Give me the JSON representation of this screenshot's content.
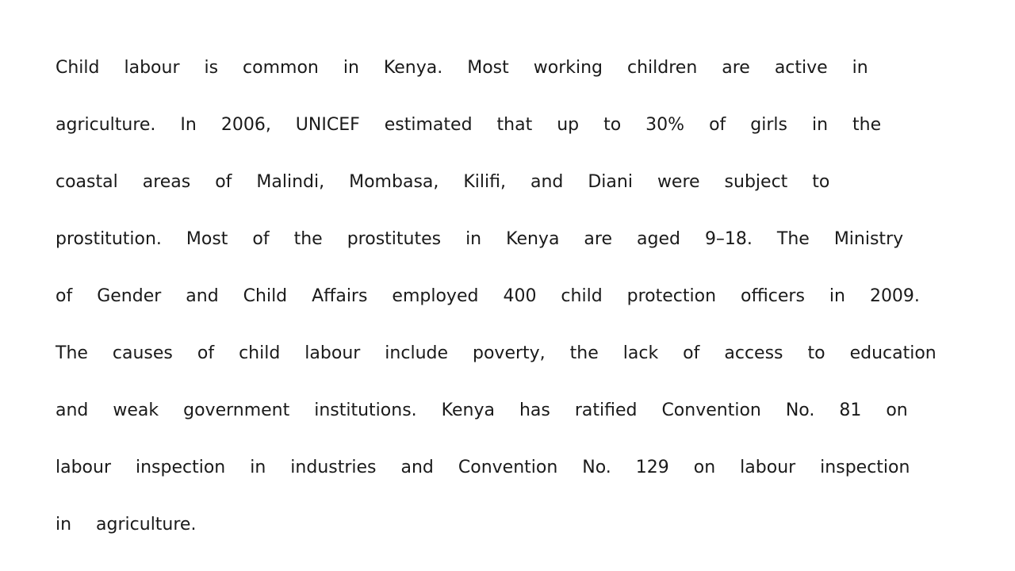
{
  "document": {
    "lines": [
      "Child labour is common in Kenya. Most working children are active in",
      "agriculture. In 2006, UNICEF estimated that up to 30% of girls in the",
      "coastal areas of Malindi, Mombasa, Kilifi, and Diani were subject to",
      "prostitution. Most of the prostitutes in Kenya are aged 9–18. The Ministry",
      "of Gender and Child Affairs employed 400 child protection officers in 2009.",
      "The causes of child labour include poverty, the lack of access to education",
      "and weak government institutions. Kenya has ratified Convention No. 81 on",
      "labour inspection in industries and Convention No. 129 on labour inspection",
      "in agriculture."
    ]
  }
}
